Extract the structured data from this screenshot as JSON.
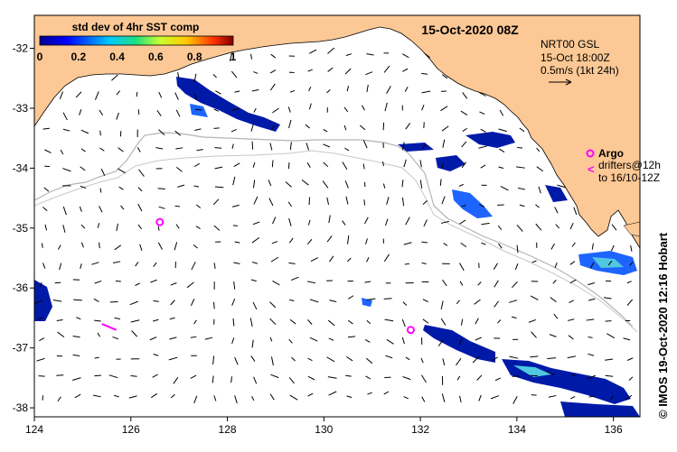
{
  "title": "15-Oct-2020 08Z",
  "colorbar": {
    "title": "std dev of 4hr SST comp",
    "ticks": [
      "0",
      "0.2",
      "0.4",
      "0.6",
      "0.8",
      "1"
    ],
    "colors": [
      "#00008f",
      "#0000ff",
      "#00c8ff",
      "#20e080",
      "#c8ff30",
      "#ffc800",
      "#ff3000",
      "#800000"
    ]
  },
  "legend": {
    "line1": "NRT00 GSL",
    "line2": "15-Oct 18:00Z",
    "line3": "0.5m/s (1kt 24h)",
    "argo_label": "Argo",
    "drifter_line1": "drifters@12h",
    "drifter_line2": "to 16/10-12Z"
  },
  "credit": "© IMOS 19-Oct-2020 12:16 Hobart",
  "axes": {
    "x_ticks": [
      "124",
      "126",
      "128",
      "130",
      "132",
      "134",
      "136"
    ],
    "y_ticks": [
      "-32",
      "-33",
      "-34",
      "-35",
      "-36",
      "-37",
      "-38"
    ]
  },
  "colors": {
    "land": "#fcc895",
    "marker": "#ff00ff",
    "contour": "#b4b4b4",
    "sst_dark": "#001aa8",
    "sst_mid": "#1e64ff",
    "sst_light": "#50c8e0"
  },
  "argo_floats": [
    {
      "lon": 126.6,
      "lat": -34.9
    },
    {
      "lon": 131.8,
      "lat": -36.7
    }
  ],
  "drifter_track": [
    {
      "lon": 125.4,
      "lat": -36.6
    },
    {
      "lon": 125.7,
      "lat": -36.7
    }
  ]
}
